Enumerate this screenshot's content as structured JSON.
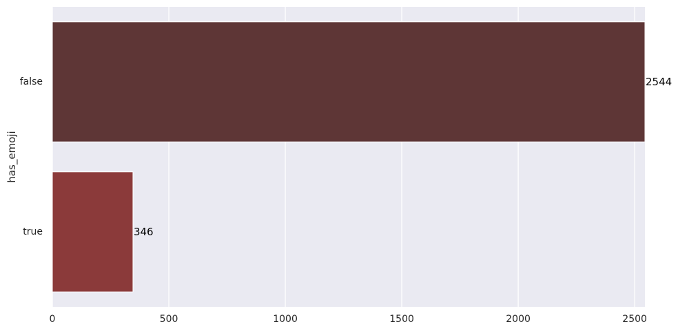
{
  "chart_data": {
    "type": "bar",
    "orientation": "horizontal",
    "categories": [
      "false",
      "true"
    ],
    "values": [
      2544,
      346
    ],
    "data_labels": [
      "2544",
      "346"
    ],
    "bar_colors": [
      "#5e3636",
      "#8b3a3a"
    ],
    "xlim": [
      0,
      2544
    ],
    "xticks": [
      0,
      500,
      1000,
      1500,
      2000,
      2500
    ],
    "xtick_labels": [
      "0",
      "500",
      "1000",
      "1500",
      "2000",
      "2500"
    ],
    "xlabel": "",
    "ylabel": "has_emoji",
    "grid": true,
    "background_color": "#eaeaf2",
    "grid_color": "#ffffff"
  }
}
